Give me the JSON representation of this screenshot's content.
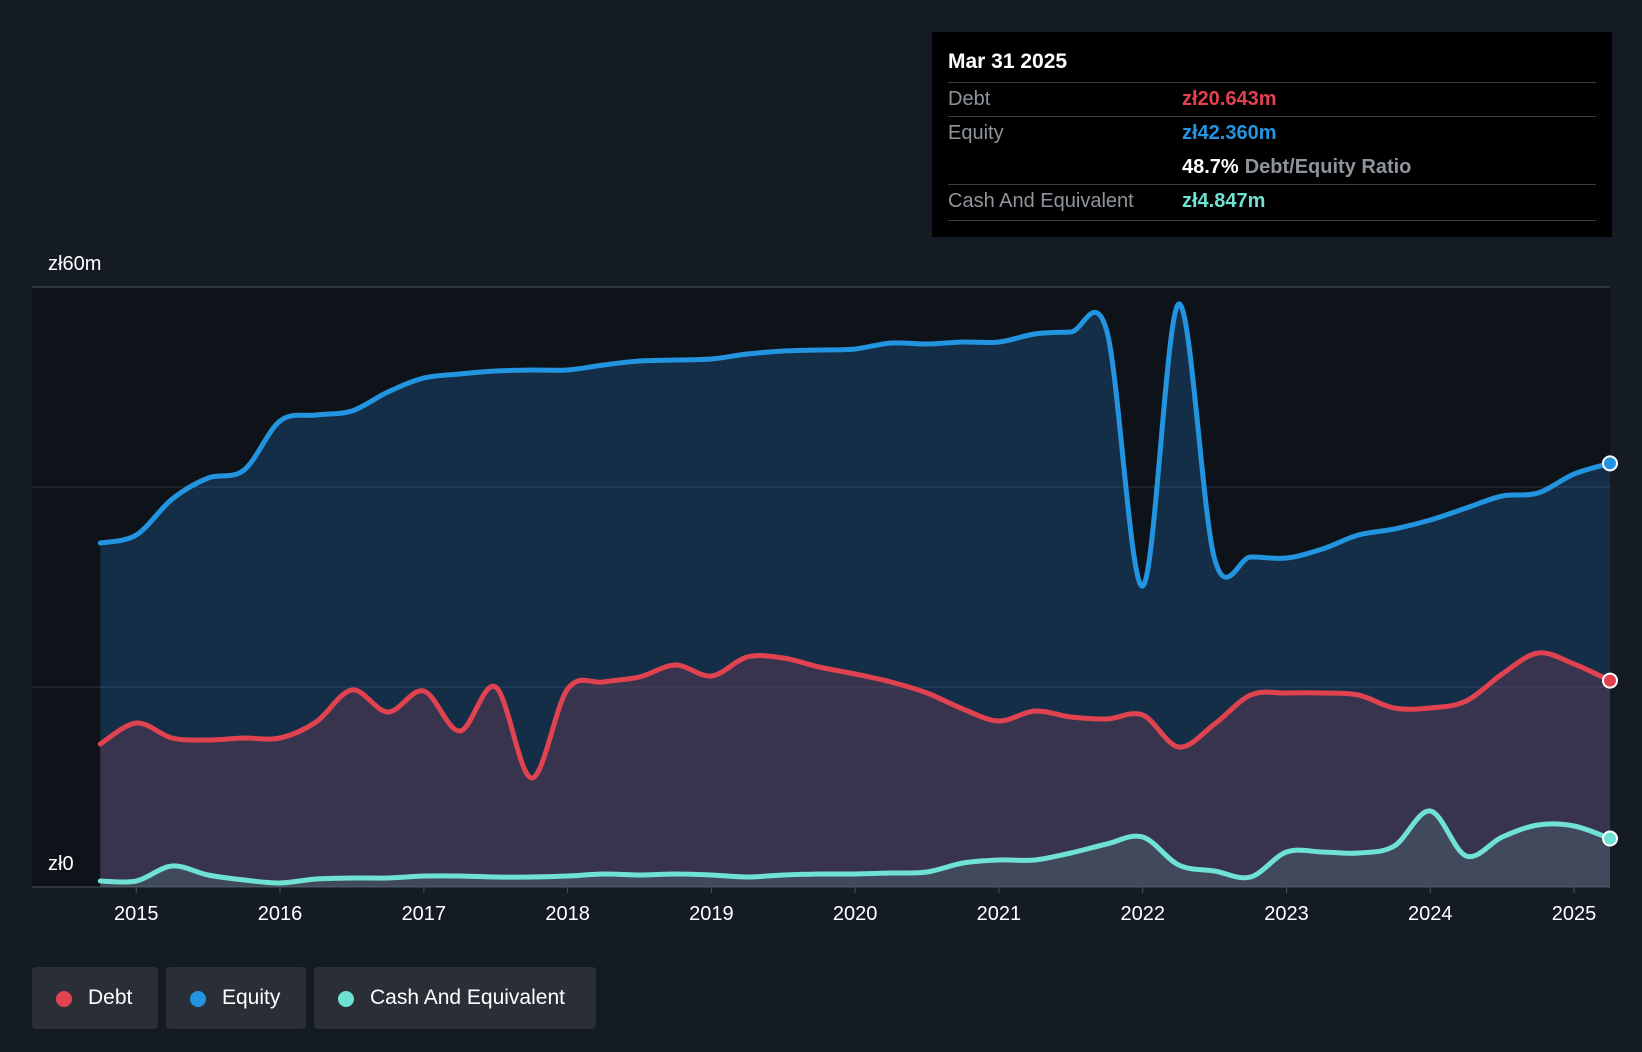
{
  "tooltip": {
    "date": "Mar 31 2025",
    "debt_label": "Debt",
    "debt_value": "zł20.643m",
    "equity_label": "Equity",
    "equity_value": "zł42.360m",
    "ratio_value": "48.7%",
    "ratio_label": "Debt/Equity Ratio",
    "cash_label": "Cash And Equivalent",
    "cash_value": "zł4.847m"
  },
  "legend": [
    {
      "label": "Debt",
      "color": "#e0434f"
    },
    {
      "label": "Equity",
      "color": "#2394df"
    },
    {
      "label": "Cash And Equivalent",
      "color": "#6fe2d4"
    }
  ],
  "chart_data": {
    "type": "area",
    "y_axis_labels": [
      "zł60m",
      "zł0"
    ],
    "ylim": [
      0,
      60
    ],
    "xlim": [
      2014.72,
      2025.25
    ],
    "x_ticks": [
      2015,
      2016,
      2017,
      2018,
      2019,
      2020,
      2021,
      2022,
      2023,
      2024,
      2025
    ],
    "x_tick_labels": [
      "2015",
      "2016",
      "2017",
      "2018",
      "2019",
      "2020",
      "2021",
      "2022",
      "2023",
      "2024",
      "2025"
    ],
    "gridlines": [
      20,
      40,
      60
    ],
    "series": [
      {
        "name": "Equity",
        "color": "#2394df",
        "fill": "rgba(35,110,180,0.30)",
        "points": [
          [
            2014.75,
            34.4
          ],
          [
            2015.0,
            35.2
          ],
          [
            2015.25,
            38.8
          ],
          [
            2015.5,
            40.9
          ],
          [
            2015.75,
            41.7
          ],
          [
            2016.0,
            46.6
          ],
          [
            2016.25,
            47.2
          ],
          [
            2016.5,
            47.6
          ],
          [
            2016.75,
            49.5
          ],
          [
            2017.0,
            50.9
          ],
          [
            2017.25,
            51.3
          ],
          [
            2017.5,
            51.6
          ],
          [
            2017.75,
            51.7
          ],
          [
            2018.0,
            51.7
          ],
          [
            2018.25,
            52.2
          ],
          [
            2018.5,
            52.6
          ],
          [
            2018.75,
            52.7
          ],
          [
            2019.0,
            52.8
          ],
          [
            2019.25,
            53.3
          ],
          [
            2019.5,
            53.6
          ],
          [
            2019.75,
            53.7
          ],
          [
            2020.0,
            53.8
          ],
          [
            2020.25,
            54.4
          ],
          [
            2020.5,
            54.3
          ],
          [
            2020.75,
            54.5
          ],
          [
            2021.0,
            54.5
          ],
          [
            2021.25,
            55.3
          ],
          [
            2021.5,
            55.5
          ],
          [
            2021.75,
            55.6
          ],
          [
            2022.0,
            30.1
          ],
          [
            2022.25,
            58.3
          ],
          [
            2022.5,
            32.8
          ],
          [
            2022.75,
            33.0
          ],
          [
            2023.0,
            32.9
          ],
          [
            2023.25,
            33.8
          ],
          [
            2023.5,
            35.2
          ],
          [
            2023.75,
            35.8
          ],
          [
            2024.0,
            36.7
          ],
          [
            2024.25,
            37.9
          ],
          [
            2024.5,
            39.1
          ],
          [
            2024.75,
            39.4
          ],
          [
            2025.0,
            41.3
          ],
          [
            2025.25,
            42.36
          ]
        ]
      },
      {
        "name": "Debt",
        "color": "#e0434f",
        "fill": "rgba(150,70,95,0.28)",
        "points": [
          [
            2014.75,
            14.3
          ],
          [
            2015.0,
            16.4
          ],
          [
            2015.25,
            14.9
          ],
          [
            2015.5,
            14.7
          ],
          [
            2015.75,
            14.9
          ],
          [
            2016.0,
            14.9
          ],
          [
            2016.25,
            16.5
          ],
          [
            2016.5,
            19.7
          ],
          [
            2016.75,
            17.5
          ],
          [
            2017.0,
            19.6
          ],
          [
            2017.25,
            15.6
          ],
          [
            2017.5,
            20.0
          ],
          [
            2017.75,
            10.9
          ],
          [
            2018.0,
            19.8
          ],
          [
            2018.25,
            20.5
          ],
          [
            2018.5,
            21.0
          ],
          [
            2018.75,
            22.2
          ],
          [
            2019.0,
            21.1
          ],
          [
            2019.25,
            23.0
          ],
          [
            2019.5,
            22.9
          ],
          [
            2019.75,
            22.0
          ],
          [
            2020.0,
            21.3
          ],
          [
            2020.25,
            20.5
          ],
          [
            2020.5,
            19.4
          ],
          [
            2020.75,
            17.8
          ],
          [
            2021.0,
            16.6
          ],
          [
            2021.25,
            17.6
          ],
          [
            2021.5,
            17.0
          ],
          [
            2021.75,
            16.8
          ],
          [
            2022.0,
            17.2
          ],
          [
            2022.25,
            14.0
          ],
          [
            2022.5,
            16.3
          ],
          [
            2022.75,
            19.2
          ],
          [
            2023.0,
            19.4
          ],
          [
            2023.25,
            19.4
          ],
          [
            2023.5,
            19.2
          ],
          [
            2023.75,
            17.9
          ],
          [
            2024.0,
            17.9
          ],
          [
            2024.25,
            18.6
          ],
          [
            2024.5,
            21.3
          ],
          [
            2024.75,
            23.4
          ],
          [
            2025.0,
            22.3
          ],
          [
            2025.25,
            20.643
          ]
        ]
      },
      {
        "name": "Cash And Equivalent",
        "color": "#6fe2d4",
        "fill": "rgba(100,150,150,0.22)",
        "points": [
          [
            2014.75,
            0.6
          ],
          [
            2015.0,
            0.6
          ],
          [
            2015.25,
            2.1
          ],
          [
            2015.5,
            1.2
          ],
          [
            2015.75,
            0.7
          ],
          [
            2016.0,
            0.4
          ],
          [
            2016.25,
            0.8
          ],
          [
            2016.5,
            0.9
          ],
          [
            2016.75,
            0.9
          ],
          [
            2017.0,
            1.1
          ],
          [
            2017.25,
            1.1
          ],
          [
            2017.5,
            1.0
          ],
          [
            2017.75,
            1.0
          ],
          [
            2018.0,
            1.1
          ],
          [
            2018.25,
            1.3
          ],
          [
            2018.5,
            1.2
          ],
          [
            2018.75,
            1.3
          ],
          [
            2019.0,
            1.2
          ],
          [
            2019.25,
            1.0
          ],
          [
            2019.5,
            1.2
          ],
          [
            2019.75,
            1.3
          ],
          [
            2020.0,
            1.3
          ],
          [
            2020.25,
            1.4
          ],
          [
            2020.5,
            1.5
          ],
          [
            2020.75,
            2.4
          ],
          [
            2021.0,
            2.7
          ],
          [
            2021.25,
            2.7
          ],
          [
            2021.5,
            3.4
          ],
          [
            2021.75,
            4.3
          ],
          [
            2022.0,
            5.0
          ],
          [
            2022.25,
            2.2
          ],
          [
            2022.5,
            1.6
          ],
          [
            2022.75,
            1.0
          ],
          [
            2023.0,
            3.5
          ],
          [
            2023.25,
            3.5
          ],
          [
            2023.5,
            3.4
          ],
          [
            2023.75,
            4.1
          ],
          [
            2024.0,
            7.6
          ],
          [
            2024.25,
            3.1
          ],
          [
            2024.5,
            5.0
          ],
          [
            2024.75,
            6.2
          ],
          [
            2025.0,
            6.1
          ],
          [
            2025.25,
            4.847
          ]
        ]
      }
    ]
  }
}
